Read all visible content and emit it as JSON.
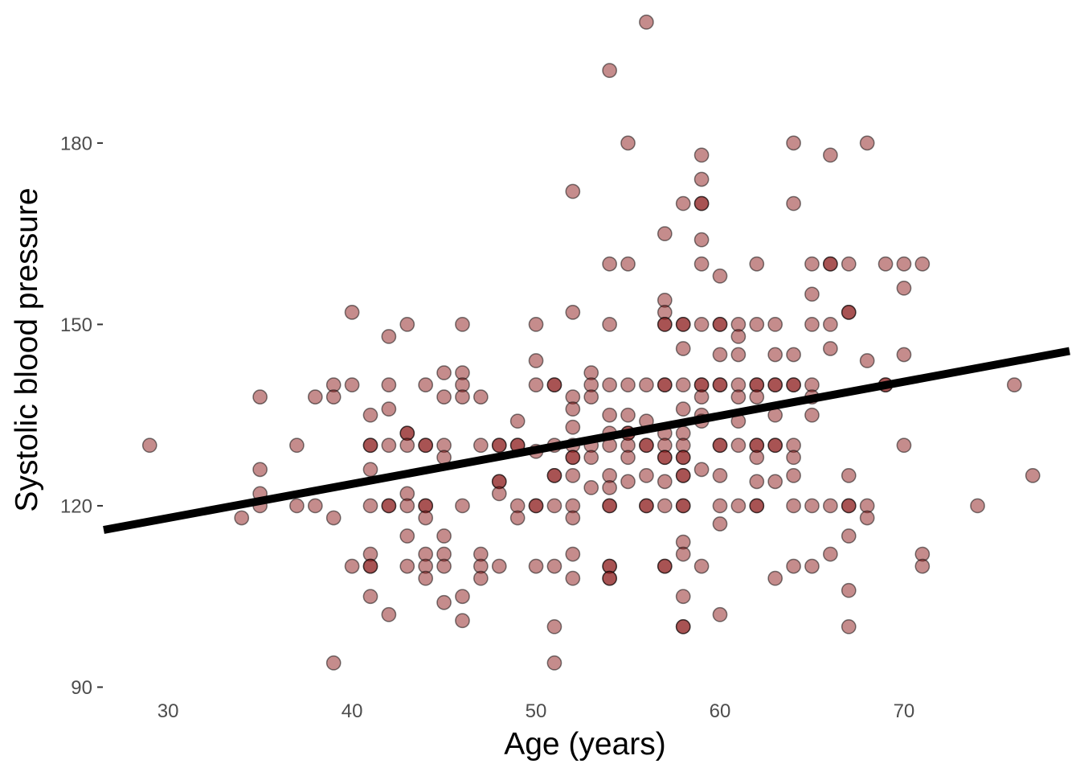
{
  "chart_data": {
    "type": "scatter",
    "title": "",
    "xlabel": "Age (years)",
    "ylabel": "Systolic blood pressure",
    "xlim": [
      26.5,
      79
    ],
    "ylim": [
      89,
      201
    ],
    "xticks": [
      30,
      40,
      50,
      60,
      70
    ],
    "yticks": [
      90,
      120,
      150,
      180
    ],
    "grid": false,
    "legend": "none",
    "point_color": "#8b1a1a",
    "point_opacity": 0.5,
    "point_stroke": "#000000",
    "line_color": "#000000",
    "regression_line": {
      "x": [
        26.5,
        79
      ],
      "y": [
        116.0,
        145.6
      ]
    },
    "points": [
      [
        29,
        130
      ],
      [
        34,
        118
      ],
      [
        35,
        138
      ],
      [
        35,
        126
      ],
      [
        35,
        122
      ],
      [
        35,
        120
      ],
      [
        37,
        130
      ],
      [
        37,
        120
      ],
      [
        38,
        138
      ],
      [
        38,
        120
      ],
      [
        39,
        140
      ],
      [
        39,
        138
      ],
      [
        39,
        118
      ],
      [
        39,
        94
      ],
      [
        40,
        152
      ],
      [
        40,
        140
      ],
      [
        40,
        110
      ],
      [
        41,
        135
      ],
      [
        41,
        130
      ],
      [
        41,
        130
      ],
      [
        41,
        126
      ],
      [
        41,
        120
      ],
      [
        41,
        112
      ],
      [
        41,
        110
      ],
      [
        41,
        110
      ],
      [
        41,
        105
      ],
      [
        42,
        148
      ],
      [
        42,
        140
      ],
      [
        42,
        136
      ],
      [
        42,
        130
      ],
      [
        42,
        120
      ],
      [
        42,
        120
      ],
      [
        42,
        102
      ],
      [
        43,
        150
      ],
      [
        43,
        132
      ],
      [
        43,
        132
      ],
      [
        43,
        130
      ],
      [
        43,
        122
      ],
      [
        43,
        120
      ],
      [
        43,
        115
      ],
      [
        43,
        110
      ],
      [
        44,
        140
      ],
      [
        44,
        130
      ],
      [
        44,
        130
      ],
      [
        44,
        120
      ],
      [
        44,
        120
      ],
      [
        44,
        118
      ],
      [
        44,
        112
      ],
      [
        44,
        110
      ],
      [
        44,
        108
      ],
      [
        45,
        142
      ],
      [
        45,
        138
      ],
      [
        45,
        130
      ],
      [
        45,
        128
      ],
      [
        45,
        115
      ],
      [
        45,
        112
      ],
      [
        45,
        110
      ],
      [
        45,
        104
      ],
      [
        46,
        150
      ],
      [
        46,
        142
      ],
      [
        46,
        140
      ],
      [
        46,
        138
      ],
      [
        46,
        120
      ],
      [
        46,
        105
      ],
      [
        46,
        101
      ],
      [
        47,
        138
      ],
      [
        47,
        130
      ],
      [
        47,
        112
      ],
      [
        47,
        110
      ],
      [
        47,
        108
      ],
      [
        48,
        130
      ],
      [
        48,
        130
      ],
      [
        48,
        124
      ],
      [
        48,
        124
      ],
      [
        48,
        122
      ],
      [
        48,
        110
      ],
      [
        49,
        134
      ],
      [
        49,
        130
      ],
      [
        49,
        130
      ],
      [
        49,
        120
      ],
      [
        49,
        118
      ],
      [
        50,
        150
      ],
      [
        50,
        144
      ],
      [
        50,
        140
      ],
      [
        50,
        129
      ],
      [
        50,
        120
      ],
      [
        50,
        120
      ],
      [
        50,
        110
      ],
      [
        51,
        140
      ],
      [
        51,
        140
      ],
      [
        51,
        130
      ],
      [
        51,
        125
      ],
      [
        51,
        125
      ],
      [
        51,
        120
      ],
      [
        51,
        110
      ],
      [
        51,
        100
      ],
      [
        51,
        94
      ],
      [
        52,
        172
      ],
      [
        52,
        152
      ],
      [
        52,
        138
      ],
      [
        52,
        136
      ],
      [
        52,
        133
      ],
      [
        52,
        130
      ],
      [
        52,
        128
      ],
      [
        52,
        128
      ],
      [
        52,
        125
      ],
      [
        52,
        120
      ],
      [
        52,
        118
      ],
      [
        52,
        112
      ],
      [
        52,
        108
      ],
      [
        53,
        142
      ],
      [
        53,
        140
      ],
      [
        53,
        138
      ],
      [
        53,
        130
      ],
      [
        53,
        128
      ],
      [
        53,
        123
      ],
      [
        54,
        192
      ],
      [
        54,
        160
      ],
      [
        54,
        150
      ],
      [
        54,
        140
      ],
      [
        54,
        135
      ],
      [
        54,
        132
      ],
      [
        54,
        130
      ],
      [
        54,
        125
      ],
      [
        54,
        123
      ],
      [
        54,
        120
      ],
      [
        54,
        120
      ],
      [
        54,
        110
      ],
      [
        54,
        110
      ],
      [
        54,
        108
      ],
      [
        54,
        108
      ],
      [
        55,
        180
      ],
      [
        55,
        160
      ],
      [
        55,
        140
      ],
      [
        55,
        135
      ],
      [
        55,
        132
      ],
      [
        55,
        132
      ],
      [
        55,
        130
      ],
      [
        55,
        128
      ],
      [
        55,
        124
      ],
      [
        56,
        200
      ],
      [
        56,
        140
      ],
      [
        56,
        134
      ],
      [
        56,
        130
      ],
      [
        56,
        130
      ],
      [
        56,
        125
      ],
      [
        56,
        120
      ],
      [
        56,
        120
      ],
      [
        57,
        165
      ],
      [
        57,
        154
      ],
      [
        57,
        152
      ],
      [
        57,
        150
      ],
      [
        57,
        150
      ],
      [
        57,
        140
      ],
      [
        57,
        140
      ],
      [
        57,
        132
      ],
      [
        57,
        130
      ],
      [
        57,
        128
      ],
      [
        57,
        128
      ],
      [
        57,
        124
      ],
      [
        57,
        120
      ],
      [
        57,
        110
      ],
      [
        57,
        110
      ],
      [
        58,
        170
      ],
      [
        58,
        150
      ],
      [
        58,
        150
      ],
      [
        58,
        146
      ],
      [
        58,
        140
      ],
      [
        58,
        136
      ],
      [
        58,
        132
      ],
      [
        58,
        130
      ],
      [
        58,
        128
      ],
      [
        58,
        128
      ],
      [
        58,
        125
      ],
      [
        58,
        125
      ],
      [
        58,
        120
      ],
      [
        58,
        120
      ],
      [
        58,
        114
      ],
      [
        58,
        112
      ],
      [
        58,
        105
      ],
      [
        58,
        100
      ],
      [
        58,
        100
      ],
      [
        59,
        178
      ],
      [
        59,
        174
      ],
      [
        59,
        170
      ],
      [
        59,
        170
      ],
      [
        59,
        164
      ],
      [
        59,
        160
      ],
      [
        59,
        150
      ],
      [
        59,
        140
      ],
      [
        59,
        140
      ],
      [
        59,
        138
      ],
      [
        59,
        135
      ],
      [
        59,
        134
      ],
      [
        59,
        126
      ],
      [
        59,
        110
      ],
      [
        60,
        158
      ],
      [
        60,
        150
      ],
      [
        60,
        150
      ],
      [
        60,
        145
      ],
      [
        60,
        140
      ],
      [
        60,
        140
      ],
      [
        60,
        130
      ],
      [
        60,
        130
      ],
      [
        60,
        125
      ],
      [
        60,
        120
      ],
      [
        60,
        117
      ],
      [
        60,
        102
      ],
      [
        61,
        150
      ],
      [
        61,
        148
      ],
      [
        61,
        145
      ],
      [
        61,
        140
      ],
      [
        61,
        138
      ],
      [
        61,
        134
      ],
      [
        61,
        130
      ],
      [
        61,
        120
      ],
      [
        62,
        160
      ],
      [
        62,
        150
      ],
      [
        62,
        140
      ],
      [
        62,
        140
      ],
      [
        62,
        138
      ],
      [
        62,
        130
      ],
      [
        62,
        130
      ],
      [
        62,
        128
      ],
      [
        62,
        124
      ],
      [
        62,
        120
      ],
      [
        62,
        120
      ],
      [
        63,
        150
      ],
      [
        63,
        145
      ],
      [
        63,
        140
      ],
      [
        63,
        140
      ],
      [
        63,
        135
      ],
      [
        63,
        130
      ],
      [
        63,
        130
      ],
      [
        63,
        124
      ],
      [
        63,
        108
      ],
      [
        64,
        180
      ],
      [
        64,
        170
      ],
      [
        64,
        145
      ],
      [
        64,
        140
      ],
      [
        64,
        140
      ],
      [
        64,
        130
      ],
      [
        64,
        128
      ],
      [
        64,
        125
      ],
      [
        64,
        120
      ],
      [
        64,
        110
      ],
      [
        65,
        160
      ],
      [
        65,
        155
      ],
      [
        65,
        150
      ],
      [
        65,
        140
      ],
      [
        65,
        138
      ],
      [
        65,
        135
      ],
      [
        65,
        120
      ],
      [
        65,
        110
      ],
      [
        66,
        178
      ],
      [
        66,
        160
      ],
      [
        66,
        160
      ],
      [
        66,
        150
      ],
      [
        66,
        146
      ],
      [
        66,
        120
      ],
      [
        66,
        112
      ],
      [
        67,
        160
      ],
      [
        67,
        152
      ],
      [
        67,
        152
      ],
      [
        67,
        125
      ],
      [
        67,
        120
      ],
      [
        67,
        120
      ],
      [
        67,
        115
      ],
      [
        67,
        106
      ],
      [
        67,
        100
      ],
      [
        68,
        180
      ],
      [
        68,
        144
      ],
      [
        68,
        120
      ],
      [
        68,
        118
      ],
      [
        69,
        160
      ],
      [
        69,
        140
      ],
      [
        69,
        140
      ],
      [
        70,
        160
      ],
      [
        70,
        156
      ],
      [
        70,
        145
      ],
      [
        70,
        130
      ],
      [
        71,
        160
      ],
      [
        71,
        112
      ],
      [
        71,
        110
      ],
      [
        74,
        120
      ],
      [
        76,
        140
      ],
      [
        77,
        125
      ]
    ]
  }
}
